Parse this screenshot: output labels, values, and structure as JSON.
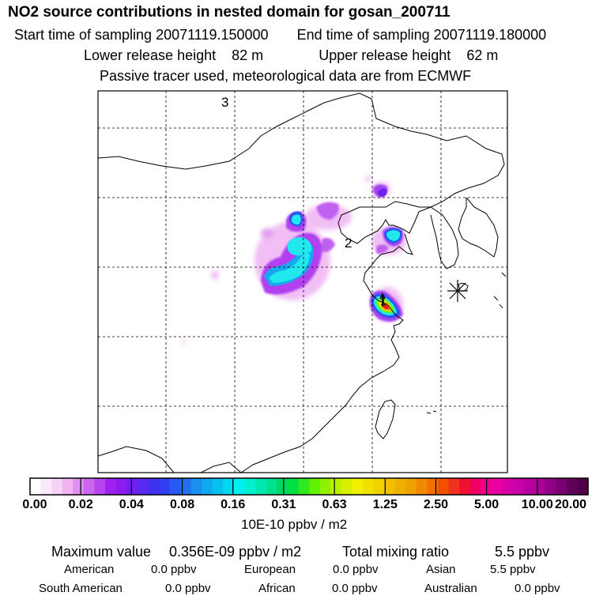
{
  "header": {
    "title": "NO2 source contributions in nested domain for gosan_200711",
    "start_label": "Start time of sampling 20071119.150000",
    "end_label": "End time of sampling 20071119.180000",
    "lower_label": "Lower release height",
    "lower_value": "82 m",
    "upper_label": "Upper release height",
    "upper_value": "62 m",
    "note": "Passive tracer used, meteorological data are from ECMWF"
  },
  "map": {
    "marker_labels": [
      "1",
      "2",
      "3"
    ],
    "colors": {
      "frame": "#000000",
      "grid": "#000000",
      "coast": "#000000"
    }
  },
  "colorbar": {
    "tick_labels": [
      "0.00",
      "0.02",
      "0.04",
      "0.08",
      "0.16",
      "0.31",
      "0.63",
      "1.25",
      "2.50",
      "5.00",
      "10.00",
      "20.00"
    ],
    "unit": "10E-10 ppbv / m2",
    "colors": [
      "#ffffff",
      "#fbe8fb",
      "#f6d2f6",
      "#efb4f0",
      "#e08ef0",
      "#cc66f0",
      "#b844f0",
      "#a020f0",
      "#8c1cf0",
      "#7020f0",
      "#5a28f0",
      "#4030f0",
      "#3040f0",
      "#2858f0",
      "#2070f0",
      "#1890f0",
      "#10a8f0",
      "#08c0f0",
      "#00d8f0",
      "#00f0f0",
      "#00f0d0",
      "#00e8b0",
      "#00e090",
      "#00d860",
      "#00e040",
      "#30e820",
      "#60f000",
      "#90f000",
      "#b8f000",
      "#d8f000",
      "#f0f000",
      "#f0e000",
      "#f0d000",
      "#f0c000",
      "#f0b000",
      "#f0a000",
      "#f08800",
      "#f07000",
      "#f05000",
      "#f03020",
      "#f01030",
      "#f00060",
      "#f00090",
      "#e800a0",
      "#d800a8",
      "#c800a8",
      "#b800a0",
      "#a80098",
      "#900088",
      "#780070",
      "#600058",
      "#500048"
    ]
  },
  "stats": {
    "max_label": "Maximum value",
    "max_value": "0.356E-09 ppbv / m2",
    "total_label": "Total mixing ratio",
    "total_value": "5.5 ppbv",
    "rows": [
      [
        {
          "label": "American",
          "value": "0.0 ppbv"
        },
        {
          "label": "European",
          "value": "0.0 ppbv"
        },
        {
          "label": "Asian",
          "value": "5.5 ppbv"
        }
      ],
      [
        {
          "label": "South American",
          "value": "0.0 ppbv"
        },
        {
          "label": "African",
          "value": "0.0 ppbv"
        },
        {
          "label": "Australian",
          "value": "0.0 ppbv"
        }
      ]
    ]
  }
}
